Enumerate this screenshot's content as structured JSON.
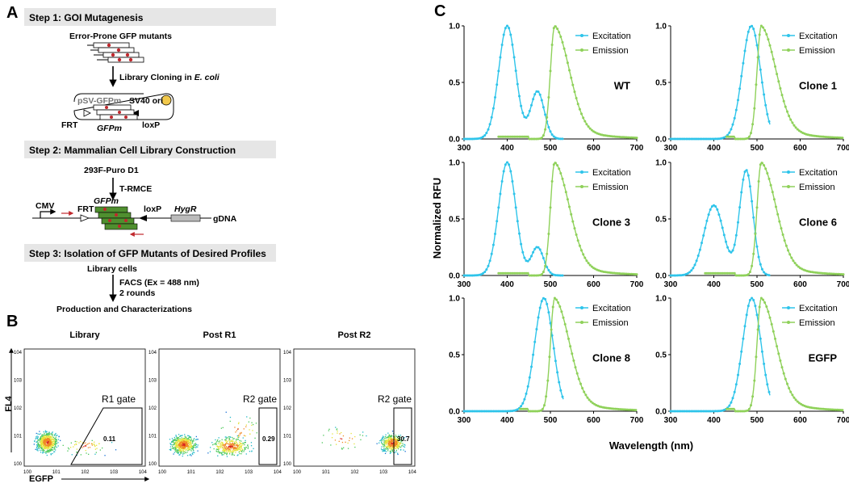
{
  "panel_labels": {
    "a": "A",
    "b": "B",
    "c": "C"
  },
  "panel_a": {
    "step1": {
      "header": "Step 1: GOI Mutagenesis",
      "mutants_label": "Error-Prone GFP mutants",
      "arrow_label": "Library Cloning in",
      "arrow_label_italic": "E. coli",
      "plasmid_name": "pSV-GFPm",
      "ori": "SV40 ori",
      "frt": "FRT",
      "gene": "GFPm",
      "loxp": "loxP"
    },
    "step2": {
      "header": "Step 2: Mammalian Cell Library Construction",
      "cell_line": "293F-Puro D1",
      "method": "T-RMCE",
      "cmv": "CMV",
      "frt": "FRT",
      "gene": "GFPm",
      "loxp": "loxP",
      "hygr": "HygR",
      "gdna": "gDNA"
    },
    "step3": {
      "header": "Step 3: Isolation of GFP Mutants of Desired Profiles",
      "cells": "Library cells",
      "facs": "FACS (Ex = 488 nm)",
      "rounds": "2 rounds",
      "final": "Production and Characterizations"
    }
  },
  "panel_b": {
    "y_axis": "FL4",
    "x_axis": "EGFP",
    "tick_exponents": [
      "0",
      "1",
      "2",
      "3",
      "4"
    ],
    "tick_base": "10",
    "plots": [
      {
        "title": "Library",
        "gate": "R1 gate",
        "percent": "0.11"
      },
      {
        "title": "Post R1",
        "gate": "R2 gate",
        "percent": "0.29"
      },
      {
        "title": "Post R2",
        "gate": "R2 gate",
        "percent": "30.7"
      }
    ]
  },
  "colors": {
    "excitation": "#2ec4ea",
    "emission": "#8fd15a",
    "mutation_dot": "#c0282d",
    "gene_box": "#4f8f2f",
    "ori_circle": "#f2c94c",
    "step_header": "#e6e6e6"
  },
  "chart_data": {
    "type": "line",
    "ylabel": "Normalized RFU",
    "xlabel": "Wavelength (nm)",
    "xlim": [
      300,
      700
    ],
    "ylim": [
      0,
      1.0
    ],
    "x_ticks": [
      "300",
      "400",
      "500",
      "600",
      "700"
    ],
    "y_ticks": [
      "0.0",
      "0.5",
      "1.0"
    ],
    "legend": [
      "Excitation",
      "Emission"
    ],
    "legend_position": "top-right",
    "panels": [
      {
        "title": "WT",
        "excitation": {
          "peaks": [
            [
              400,
              1.0,
              28
            ],
            [
              470,
              0.42,
              22
            ]
          ],
          "start": 300,
          "end": 530
        },
        "emission": {
          "peak": 510,
          "height": 1.0,
          "start": 380,
          "end": 700
        }
      },
      {
        "title": "Clone 1",
        "excitation": {
          "peaks": [
            [
              487,
              1.0,
              30
            ]
          ],
          "start": 300,
          "end": 530
        },
        "emission": {
          "peak": 510,
          "height": 1.0,
          "start": 430,
          "end": 700
        }
      },
      {
        "title": "Clone 3",
        "excitation": {
          "peaks": [
            [
              400,
              1.0,
              28
            ],
            [
              470,
              0.25,
              20
            ]
          ],
          "start": 300,
          "end": 530
        },
        "emission": {
          "peak": 510,
          "height": 1.0,
          "start": 380,
          "end": 700
        }
      },
      {
        "title": "Clone 6",
        "excitation": {
          "peaks": [
            [
              400,
              0.62,
              32
            ],
            [
              475,
              0.93,
              22
            ]
          ],
          "start": 300,
          "end": 530
        },
        "emission": {
          "peak": 510,
          "height": 1.0,
          "start": 380,
          "end": 700
        }
      },
      {
        "title": "Clone 8",
        "excitation": {
          "peaks": [
            [
              485,
              1.0,
              30
            ]
          ],
          "start": 300,
          "end": 530
        },
        "emission": {
          "peak": 510,
          "height": 1.0,
          "start": 430,
          "end": 700
        }
      },
      {
        "title": "EGFP",
        "excitation": {
          "peaks": [
            [
              488,
              1.0,
              30
            ]
          ],
          "start": 300,
          "end": 530
        },
        "emission": {
          "peak": 510,
          "height": 1.0,
          "start": 430,
          "end": 700
        }
      }
    ]
  }
}
